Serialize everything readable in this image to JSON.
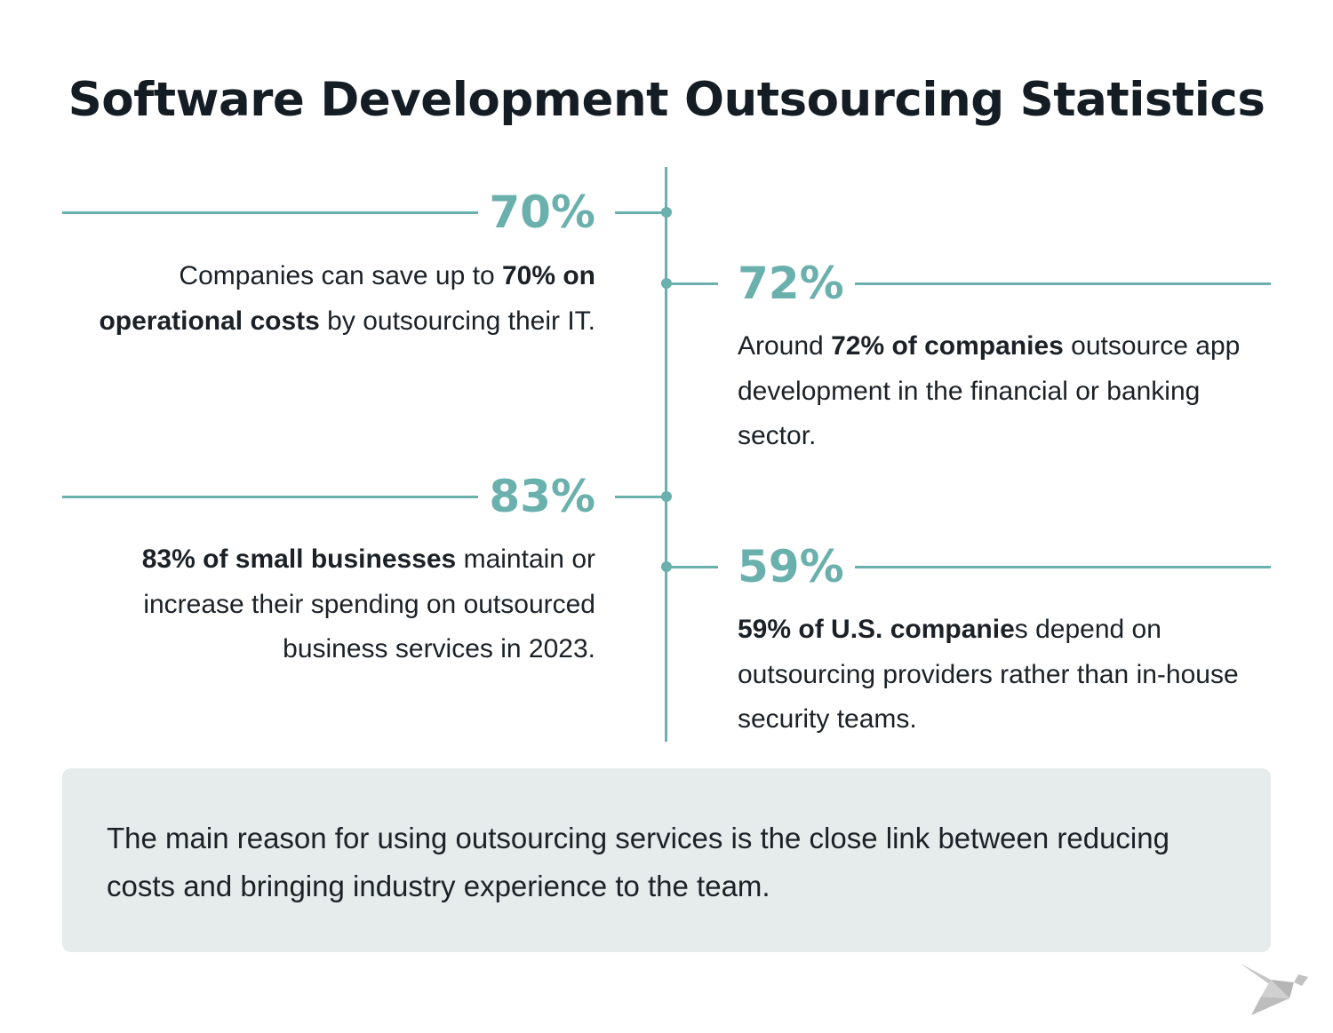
{
  "title": "Software Development Outsourcing Statistics",
  "accent_color": "#6ab0ad",
  "stats": [
    {
      "value": "70%",
      "segments": [
        {
          "text": "Companies can save up to ",
          "bold": false
        },
        {
          "text": "70% on operational costs",
          "bold": true
        },
        {
          "text": " by outsourcing their IT.",
          "bold": false
        }
      ]
    },
    {
      "value": "72%",
      "segments": [
        {
          "text": "Around ",
          "bold": false
        },
        {
          "text": "72% of companies",
          "bold": true
        },
        {
          "text": " outsource app development in the financial or banking sector.",
          "bold": false
        }
      ]
    },
    {
      "value": "83%",
      "segments": [
        {
          "text": "83% of small businesses",
          "bold": true
        },
        {
          "text": " maintain or increase their spending on outsourced business services in 2023.",
          "bold": false
        }
      ]
    },
    {
      "value": "59%",
      "segments": [
        {
          "text": "59% of U.S. companie",
          "bold": true
        },
        {
          "text": "s depend on outsourcing providers rather than in-house security teams.",
          "bold": false
        }
      ]
    }
  ],
  "note": "The main reason for using outsourcing services is the close link between reducing costs and bringing industry experience to the team.",
  "logo": "origami-bird-icon"
}
